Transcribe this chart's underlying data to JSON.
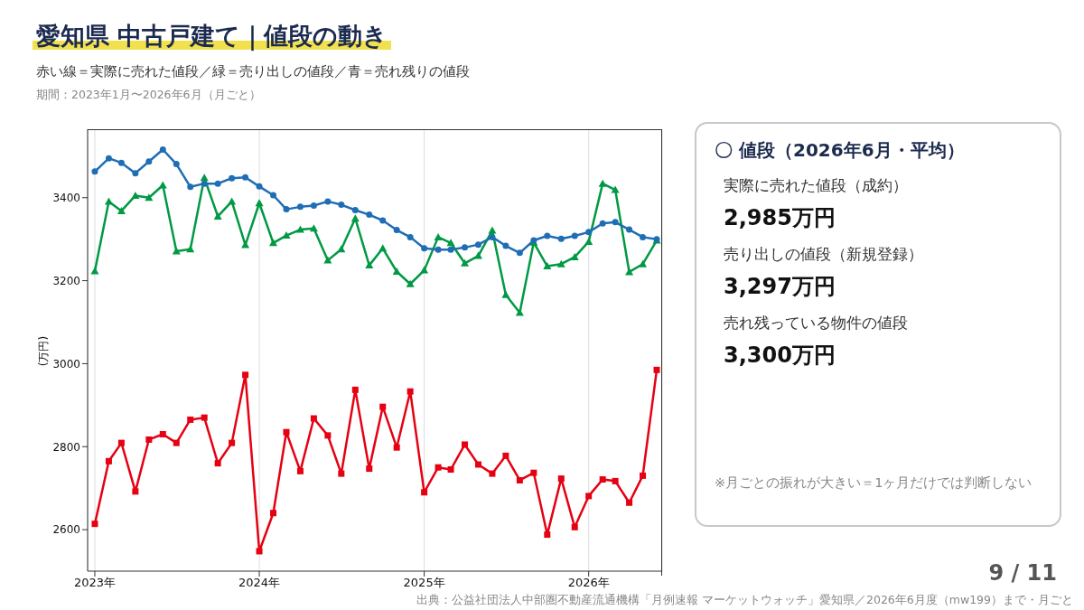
{
  "chart_data": [
    {
      "type": "line",
      "title": "愛知県 中古戸建て｜値段の動き",
      "subtitle": "赤い線＝実際に売れた値段／緑＝売り出しの値段／青＝売れ残りの値段",
      "ylabel": "(万円)",
      "annotations": [
        "期間：2023年1月〜2026年6月（月ごと）",
        "出典：公益社団法人中部圏不動産流通機構「月例速報 マーケットウォッチ」愛知県／2026年6月度（mw199）まで・月ごと",
        "9 / 11"
      ],
      "x": [
        "2023-01",
        "2023-02",
        "2023-03",
        "2023-04",
        "2023-05",
        "2023-06",
        "2023-07",
        "2023-08",
        "2023-09",
        "2023-10",
        "2023-11",
        "2023-12",
        "2024-01",
        "2024-02",
        "2024-03",
        "2024-04",
        "2024-05",
        "2024-06",
        "2024-07",
        "2024-08",
        "2024-09",
        "2024-10",
        "2024-11",
        "2024-12",
        "2025-01",
        "2025-02",
        "2025-03",
        "2025-04",
        "2025-05",
        "2025-06",
        "2025-07",
        "2025-08",
        "2025-09",
        "2025-10",
        "2025-11",
        "2025-12",
        "2026-01",
        "2026-02",
        "2026-03",
        "2026-04",
        "2026-05",
        "2026-06"
      ],
      "series": [
        {
          "color": "#1f6db5",
          "marker": "circle",
          "values": [
            3463,
            3495,
            3484,
            3459,
            3487,
            3516,
            3481,
            3426,
            3434,
            3434,
            3447,
            3449,
            3427,
            3406,
            3372,
            3378,
            3381,
            3391,
            3383,
            3370,
            3359,
            3345,
            3322,
            3305,
            3278,
            3275,
            3275,
            3280,
            3287,
            3305,
            3284,
            3267,
            3297,
            3308,
            3301,
            3308,
            3317,
            3338,
            3341,
            3323,
            3305,
            3300
          ]
        },
        {
          "color": "#009944",
          "marker": "triangle",
          "values": [
            3223,
            3391,
            3368,
            3405,
            3400,
            3430,
            3271,
            3276,
            3448,
            3355,
            3391,
            3286,
            3387,
            3291,
            3309,
            3323,
            3326,
            3249,
            3276,
            3350,
            3237,
            3278,
            3222,
            3192,
            3225,
            3305,
            3291,
            3242,
            3260,
            3321,
            3166,
            3123,
            3292,
            3235,
            3240,
            3257,
            3294,
            3434,
            3419,
            3221,
            3240,
            3297
          ]
        },
        {
          "color": "#e60012",
          "marker": "square",
          "values": [
            2614,
            2765,
            2809,
            2692,
            2817,
            2830,
            2809,
            2865,
            2870,
            2760,
            2809,
            2973,
            2548,
            2640,
            2835,
            2741,
            2868,
            2827,
            2735,
            2937,
            2747,
            2896,
            2798,
            2933,
            2690,
            2750,
            2745,
            2805,
            2757,
            2735,
            2778,
            2719,
            2737,
            2588,
            2723,
            2606,
            2681,
            2721,
            2717,
            2665,
            2730,
            2985
          ]
        }
      ],
      "xlim": [
        "2022-12-16",
        "2026-06-13"
      ],
      "xticks": [
        {
          "value": "2023-01",
          "label": "2023年"
        },
        {
          "value": "2024-01",
          "label": "2024年"
        },
        {
          "value": "2025-01",
          "label": "2025年"
        },
        {
          "value": "2026-01",
          "label": "2026年"
        }
      ],
      "ylim": [
        2500,
        3565
      ],
      "yticks": [
        2600,
        2800,
        3000,
        3200,
        3400
      ],
      "grid": "x",
      "line_style": "solid"
    },
    {
      "type": "other",
      "title": "〇 値段（2026年6月・平均）",
      "annotations": [
        "実際に売れた値段（成約）",
        "2,985万円",
        "売り出しの値段（新規登録）",
        "3,297万円",
        "売れ残っている物件の値段",
        "3,300万円",
        "※月ごとの振れが大きい＝1ヶ月だけでは判断しない"
      ]
    }
  ]
}
